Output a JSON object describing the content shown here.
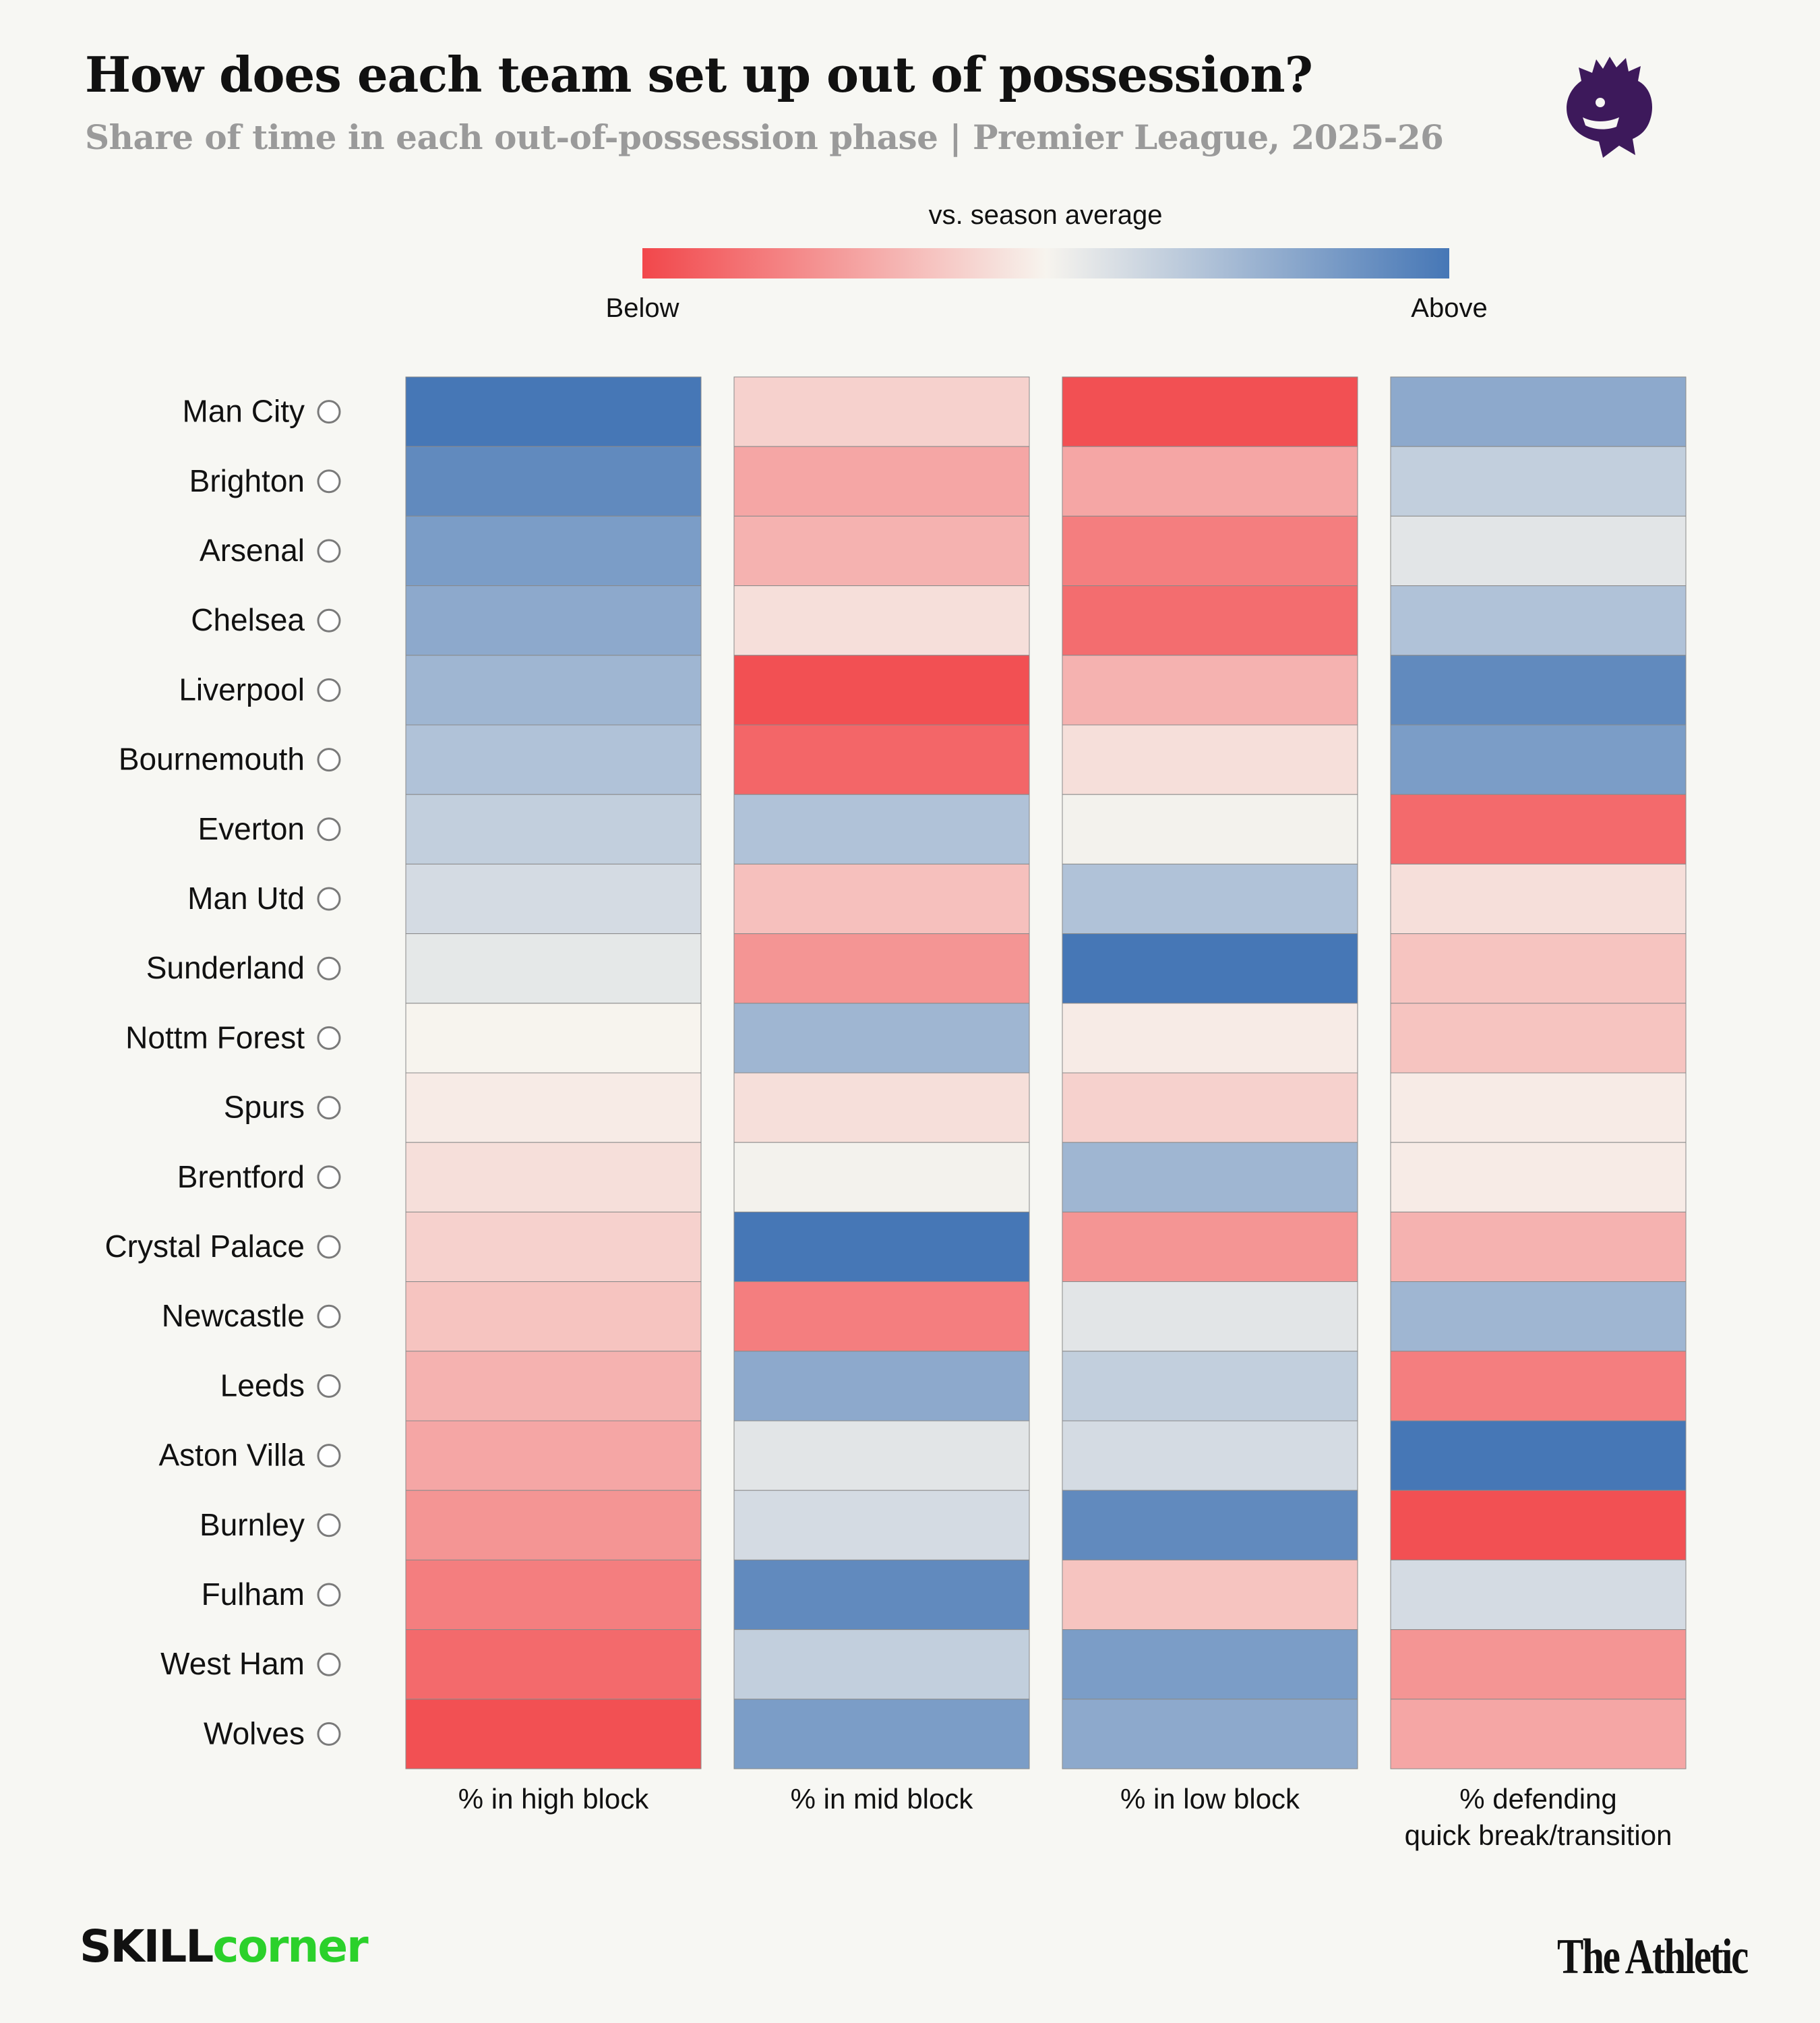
{
  "header": {
    "title": "How does each team set up out of possession?",
    "subtitle": "Share of time in each out-of-possession phase | Premier League, 2025-26"
  },
  "legend": {
    "title": "vs. season average",
    "low_label": "Below",
    "high_label": "Above",
    "colors": [
      "#f2474b",
      "#f7f4ee",
      "#4677b6"
    ]
  },
  "brands": {
    "left_part1": "SKILL",
    "left_part2": "corner",
    "right": "The Athletic",
    "left_color_dark": "#111111",
    "left_color_accent": "#2bd12b",
    "pl_logo_color": "#3d195b"
  },
  "chart_data": {
    "type": "heatmap",
    "title": "How does each team set up out of possession?",
    "subtitle": "Share of time in each out-of-possession phase | Premier League, 2025-26",
    "value_meaning": "relative to season average (-1 = well below, +1 = well above), estimated from colour",
    "columns": [
      "% in high block",
      "% in mid block",
      "% in low block",
      "% defending quick break/transition"
    ],
    "rows": [
      {
        "team": "Man City",
        "values": [
          1.0,
          -0.2,
          -0.95,
          0.6
        ]
      },
      {
        "team": "Brighton",
        "values": [
          0.85,
          -0.45,
          -0.45,
          0.3
        ]
      },
      {
        "team": "Arsenal",
        "values": [
          0.7,
          -0.38,
          -0.68,
          0.12
        ]
      },
      {
        "team": "Chelsea",
        "values": [
          0.6,
          -0.12,
          -0.78,
          0.4
        ]
      },
      {
        "team": "Liverpool",
        "values": [
          0.5,
          -0.95,
          -0.38,
          0.85
        ]
      },
      {
        "team": "Bournemouth",
        "values": [
          0.4,
          -0.82,
          -0.12,
          0.7
        ]
      },
      {
        "team": "Everton",
        "values": [
          0.3,
          0.4,
          0.02,
          -0.8
        ]
      },
      {
        "team": "Man Utd",
        "values": [
          0.2,
          -0.3,
          0.4,
          -0.12
        ]
      },
      {
        "team": "Sunderland",
        "values": [
          0.1,
          -0.55,
          1.0,
          -0.28
        ]
      },
      {
        "team": "Nottm Forest",
        "values": [
          0.0,
          0.5,
          -0.05,
          -0.28
        ]
      },
      {
        "team": "Spurs",
        "values": [
          -0.05,
          -0.12,
          -0.2,
          -0.05
        ]
      },
      {
        "team": "Brentford",
        "values": [
          -0.12,
          0.02,
          0.5,
          -0.05
        ]
      },
      {
        "team": "Crystal Palace",
        "values": [
          -0.2,
          1.0,
          -0.55,
          -0.38
        ]
      },
      {
        "team": "Newcastle",
        "values": [
          -0.28,
          -0.68,
          0.12,
          0.5
        ]
      },
      {
        "team": "Leeds",
        "values": [
          -0.38,
          0.6,
          0.3,
          -0.68
        ]
      },
      {
        "team": "Aston Villa",
        "values": [
          -0.45,
          0.12,
          0.2,
          1.0
        ]
      },
      {
        "team": "Burnley",
        "values": [
          -0.55,
          0.2,
          0.85,
          -0.95
        ]
      },
      {
        "team": "Fulham",
        "values": [
          -0.68,
          0.85,
          -0.28,
          0.2
        ]
      },
      {
        "team": "West Ham",
        "values": [
          -0.8,
          0.3,
          0.7,
          -0.55
        ]
      },
      {
        "team": "Wolves",
        "values": [
          -0.95,
          0.7,
          0.6,
          -0.45
        ]
      }
    ]
  }
}
